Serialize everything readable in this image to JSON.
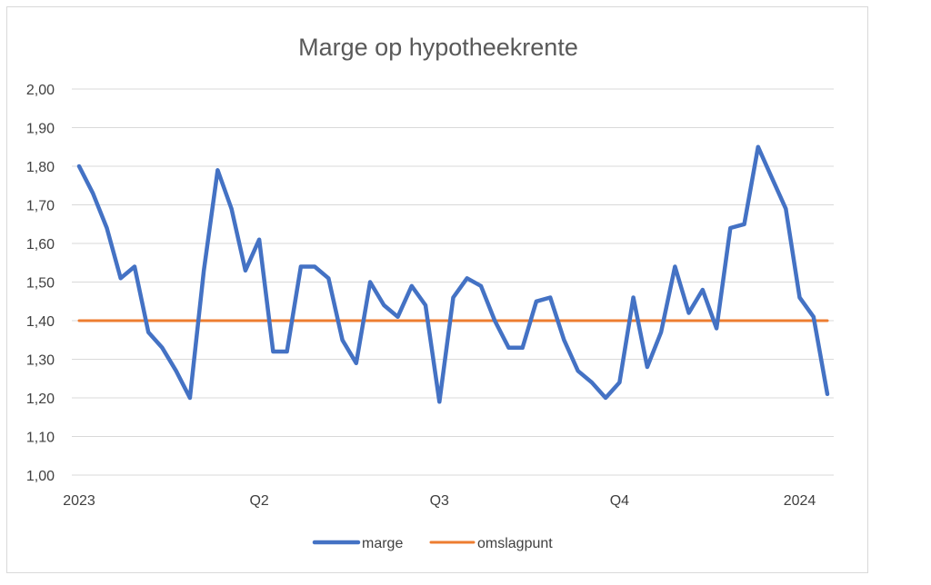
{
  "chart_data": {
    "type": "line",
    "title": "Marge op hypotheekrente",
    "xlabel": "",
    "ylabel": "",
    "ylim": [
      1.0,
      2.0
    ],
    "y_ticks": [
      "1,00",
      "1,10",
      "1,20",
      "1,30",
      "1,40",
      "1,50",
      "1,60",
      "1,70",
      "1,80",
      "1,90",
      "2,00"
    ],
    "x_ticks": [
      {
        "label": "2023",
        "index": 0
      },
      {
        "label": "Q2",
        "index": 13
      },
      {
        "label": "Q3",
        "index": 26
      },
      {
        "label": "Q4",
        "index": 39
      },
      {
        "label": "2024",
        "index": 52
      }
    ],
    "grid": true,
    "legend_position": "bottom",
    "series": [
      {
        "name": "marge",
        "color": "#4472c4",
        "values": [
          1.8,
          1.73,
          1.64,
          1.51,
          1.54,
          1.37,
          1.33,
          1.27,
          1.2,
          1.53,
          1.79,
          1.69,
          1.53,
          1.61,
          1.32,
          1.32,
          1.54,
          1.54,
          1.51,
          1.35,
          1.29,
          1.5,
          1.44,
          1.41,
          1.49,
          1.44,
          1.19,
          1.46,
          1.51,
          1.49,
          1.4,
          1.33,
          1.33,
          1.45,
          1.46,
          1.35,
          1.27,
          1.24,
          1.2,
          1.24,
          1.46,
          1.28,
          1.37,
          1.54,
          1.42,
          1.48,
          1.38,
          1.64,
          1.65,
          1.85,
          1.77,
          1.69,
          1.46,
          1.41,
          1.21
        ]
      },
      {
        "name": "omslagpunt",
        "color": "#ed7d31",
        "values": [
          1.4,
          1.4,
          1.4,
          1.4,
          1.4,
          1.4,
          1.4,
          1.4,
          1.4,
          1.4,
          1.4,
          1.4,
          1.4,
          1.4,
          1.4,
          1.4,
          1.4,
          1.4,
          1.4,
          1.4,
          1.4,
          1.4,
          1.4,
          1.4,
          1.4,
          1.4,
          1.4,
          1.4,
          1.4,
          1.4,
          1.4,
          1.4,
          1.4,
          1.4,
          1.4,
          1.4,
          1.4,
          1.4,
          1.4,
          1.4,
          1.4,
          1.4,
          1.4,
          1.4,
          1.4,
          1.4,
          1.4,
          1.4,
          1.4,
          1.4,
          1.4,
          1.4,
          1.4,
          1.4,
          1.4
        ]
      }
    ]
  }
}
